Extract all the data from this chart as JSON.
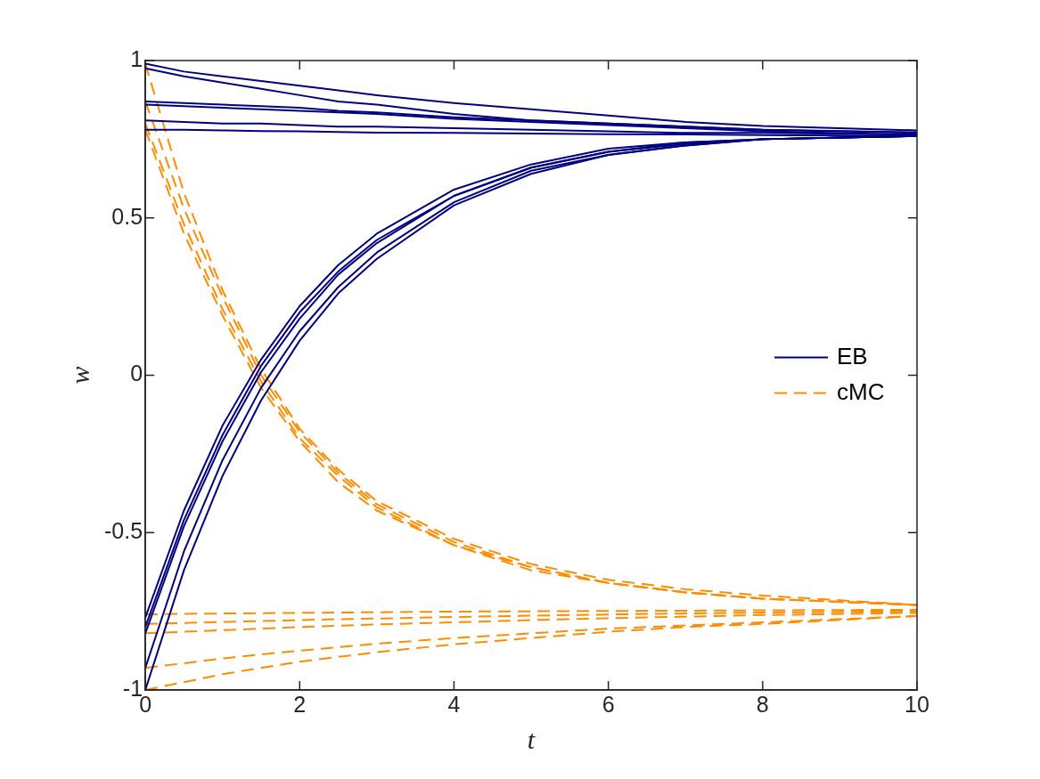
{
  "chart_data": {
    "type": "line",
    "xlabel": "t",
    "ylabel": "w",
    "x": [
      0,
      0.5,
      1,
      1.5,
      2,
      2.5,
      3,
      4,
      5,
      6,
      7,
      8,
      10
    ],
    "xlim": [
      0,
      10
    ],
    "xticks": [
      0,
      2,
      4,
      6,
      8,
      10
    ],
    "ylim": [
      -1,
      1
    ],
    "yticks": [
      -1,
      -0.5,
      0,
      0.5,
      1
    ],
    "grid": false,
    "legend": "right",
    "marker": "none",
    "series": [
      {
        "name": "EB",
        "color": "#000080",
        "line_style": "solid",
        "values": [
          0.99,
          0.965,
          0.95,
          0.935,
          0.92,
          0.905,
          0.89,
          0.865,
          0.845,
          0.825,
          0.805,
          0.792,
          0.778
        ]
      },
      {
        "color": "#000080",
        "line_style": "solid",
        "values": [
          0.975,
          0.95,
          0.93,
          0.91,
          0.89,
          0.87,
          0.86,
          0.83,
          0.81,
          0.8,
          0.79,
          0.78,
          0.772
        ]
      },
      {
        "color": "#000080",
        "line_style": "solid",
        "values": [
          0.87,
          0.865,
          0.86,
          0.855,
          0.85,
          0.84,
          0.835,
          0.82,
          0.81,
          0.8,
          0.79,
          0.78,
          0.77
        ]
      },
      {
        "color": "#000080",
        "line_style": "solid",
        "values": [
          0.86,
          0.855,
          0.85,
          0.845,
          0.84,
          0.835,
          0.83,
          0.815,
          0.805,
          0.795,
          0.785,
          0.775,
          0.764
        ]
      },
      {
        "color": "#000080",
        "line_style": "solid",
        "values": [
          0.81,
          0.805,
          0.8,
          0.8,
          0.795,
          0.79,
          0.79,
          0.785,
          0.78,
          0.775,
          0.77,
          0.77,
          0.765
        ]
      },
      {
        "color": "#000080",
        "line_style": "solid",
        "values": [
          0.78,
          0.78,
          0.778,
          0.776,
          0.775,
          0.773,
          0.771,
          0.77,
          0.768,
          0.766,
          0.765,
          0.763,
          0.76
        ]
      },
      {
        "color": "#000080",
        "line_style": "solid",
        "values": [
          -0.8,
          -0.46,
          -0.19,
          0.03,
          0.2,
          0.33,
          0.43,
          0.57,
          0.66,
          0.71,
          0.735,
          0.75,
          0.76
        ]
      },
      {
        "color": "#000080",
        "line_style": "solid",
        "values": [
          -0.77,
          -0.43,
          -0.16,
          0.05,
          0.22,
          0.35,
          0.45,
          0.59,
          0.67,
          0.72,
          0.74,
          0.75,
          0.76
        ]
      },
      {
        "color": "#000080",
        "line_style": "solid",
        "values": [
          -0.93,
          -0.56,
          -0.27,
          -0.04,
          0.14,
          0.28,
          0.39,
          0.55,
          0.65,
          0.7,
          0.73,
          0.75,
          0.76
        ]
      },
      {
        "color": "#000080",
        "line_style": "solid",
        "values": [
          -1,
          -0.62,
          -0.32,
          -0.08,
          0.11,
          0.26,
          0.37,
          0.54,
          0.64,
          0.7,
          0.73,
          0.75,
          0.76
        ]
      },
      {
        "color": "#000080",
        "line_style": "solid",
        "values": [
          -0.82,
          -0.48,
          -0.21,
          0.01,
          0.18,
          0.32,
          0.42,
          0.57,
          0.66,
          0.71,
          0.74,
          0.75,
          0.76
        ]
      },
      {
        "name": "cMC",
        "color": "#ff8c00",
        "line_style": "dashed",
        "values": [
          0.99,
          0.58,
          0.27,
          0.02,
          -0.17,
          -0.3,
          -0.4,
          -0.52,
          -0.6,
          -0.65,
          -0.68,
          -0.7,
          -0.73
        ]
      },
      {
        "color": "#ff8c00",
        "line_style": "dashed",
        "values": [
          0.87,
          0.53,
          0.25,
          0,
          -0.18,
          -0.31,
          -0.41,
          -0.53,
          -0.61,
          -0.66,
          -0.69,
          -0.71,
          -0.73
        ]
      },
      {
        "color": "#ff8c00",
        "line_style": "dashed",
        "values": [
          0.8,
          0.48,
          0.21,
          -0.02,
          -0.2,
          -0.32,
          -0.42,
          -0.54,
          -0.61,
          -0.66,
          -0.69,
          -0.71,
          -0.73
        ]
      },
      {
        "color": "#ff8c00",
        "line_style": "dashed",
        "values": [
          0.78,
          0.45,
          0.19,
          -0.04,
          -0.21,
          -0.34,
          -0.43,
          -0.54,
          -0.62,
          -0.66,
          -0.69,
          -0.71,
          -0.73
        ]
      },
      {
        "color": "#ff8c00",
        "line_style": "dashed",
        "values": [
          -0.76,
          -0.758,
          -0.757,
          -0.756,
          -0.755,
          -0.754,
          -0.753,
          -0.751,
          -0.75,
          -0.749,
          -0.748,
          -0.747,
          -0.745
        ]
      },
      {
        "color": "#ff8c00",
        "line_style": "dashed",
        "values": [
          -0.79,
          -0.787,
          -0.784,
          -0.781,
          -0.778,
          -0.775,
          -0.773,
          -0.768,
          -0.764,
          -0.76,
          -0.757,
          -0.754,
          -0.75
        ]
      },
      {
        "color": "#ff8c00",
        "line_style": "dashed",
        "values": [
          -0.82,
          -0.815,
          -0.81,
          -0.805,
          -0.8,
          -0.796,
          -0.792,
          -0.785,
          -0.778,
          -0.772,
          -0.767,
          -0.762,
          -0.755
        ]
      },
      {
        "color": "#ff8c00",
        "line_style": "dashed",
        "values": [
          -0.93,
          -0.915,
          -0.9,
          -0.887,
          -0.875,
          -0.864,
          -0.853,
          -0.835,
          -0.82,
          -0.805,
          -0.795,
          -0.785,
          -0.765
        ]
      },
      {
        "color": "#ff8c00",
        "line_style": "dashed",
        "values": [
          -1,
          -0.975,
          -0.95,
          -0.93,
          -0.91,
          -0.895,
          -0.88,
          -0.855,
          -0.835,
          -0.815,
          -0.8,
          -0.79,
          -0.765
        ]
      }
    ]
  }
}
